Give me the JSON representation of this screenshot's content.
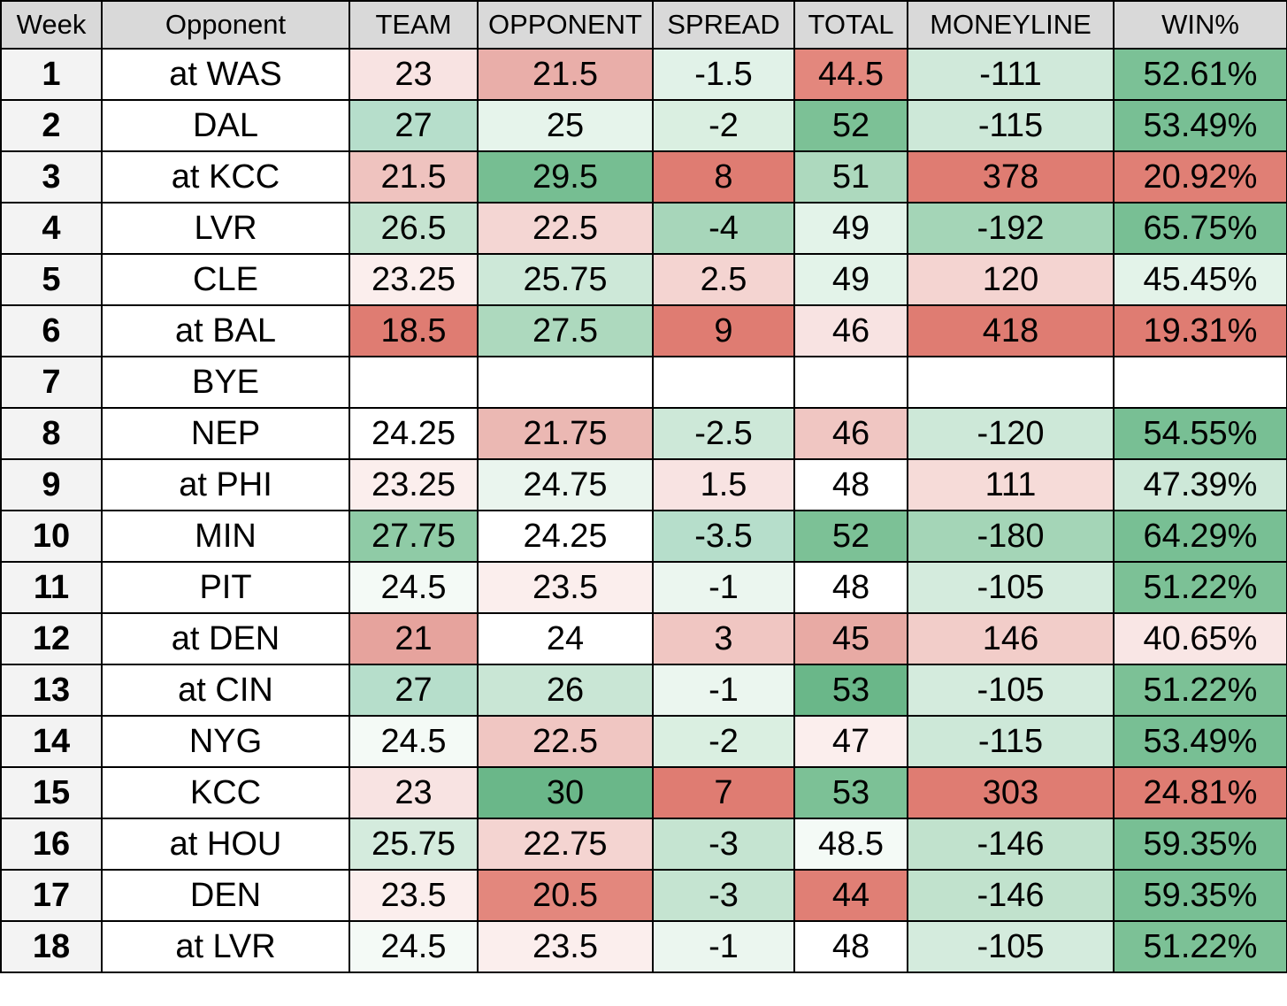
{
  "headers": [
    "Week",
    "Opponent",
    "TEAM",
    "OPPONENT",
    "SPREAD",
    "TOTAL",
    "MONEYLINE",
    "WIN%"
  ],
  "rows": [
    {
      "week": "1",
      "opp": "at WAS",
      "cells": [
        {
          "v": "23",
          "c": "#f8e3e2"
        },
        {
          "v": "21.5",
          "c": "#e9aea9"
        },
        {
          "v": "-1.5",
          "c": "#e1f2e8"
        },
        {
          "v": "44.5",
          "c": "#e3877d"
        },
        {
          "v": "-111",
          "c": "#d0e9da"
        },
        {
          "v": "52.61%",
          "c": "#7bc196"
        }
      ]
    },
    {
      "week": "2",
      "opp": "DAL",
      "cells": [
        {
          "v": "27",
          "c": "#b6decb"
        },
        {
          "v": "25",
          "c": "#e6f4eb"
        },
        {
          "v": "-2",
          "c": "#daefe1"
        },
        {
          "v": "52",
          "c": "#7cc196"
        },
        {
          "v": "-115",
          "c": "#cde8d8"
        },
        {
          "v": "53.49%",
          "c": "#78bf94"
        }
      ]
    },
    {
      "week": "3",
      "opp": "at KCC",
      "cells": [
        {
          "v": "21.5",
          "c": "#efc3bf"
        },
        {
          "v": "29.5",
          "c": "#76be92"
        },
        {
          "v": "8",
          "c": "#df7c72"
        },
        {
          "v": "51",
          "c": "#add9be"
        },
        {
          "v": "378",
          "c": "#df7c72"
        },
        {
          "v": "20.92%",
          "c": "#e07f75"
        }
      ]
    },
    {
      "week": "4",
      "opp": "LVR",
      "cells": [
        {
          "v": "26.5",
          "c": "#c5e4d1"
        },
        {
          "v": "22.5",
          "c": "#f4d6d3"
        },
        {
          "v": "-4",
          "c": "#a7d6ba"
        },
        {
          "v": "49",
          "c": "#e3f3e9"
        },
        {
          "v": "-192",
          "c": "#a4d5b7"
        },
        {
          "v": "65.75%",
          "c": "#78bf94"
        }
      ]
    },
    {
      "week": "5",
      "opp": "CLE",
      "cells": [
        {
          "v": "23.25",
          "c": "#fbeeed"
        },
        {
          "v": "25.75",
          "c": "#cde8d8"
        },
        {
          "v": "2.5",
          "c": "#f4d4d1"
        },
        {
          "v": "49",
          "c": "#e3f3e9"
        },
        {
          "v": "120",
          "c": "#f4d4d1"
        },
        {
          "v": "45.45%",
          "c": "#e3f3e9"
        }
      ]
    },
    {
      "week": "6",
      "opp": "at BAL",
      "cells": [
        {
          "v": "18.5",
          "c": "#df7c72"
        },
        {
          "v": "27.5",
          "c": "#add9be"
        },
        {
          "v": "9",
          "c": "#df7c72"
        },
        {
          "v": "46",
          "c": "#f8e3e2"
        },
        {
          "v": "418",
          "c": "#df7c72"
        },
        {
          "v": "19.31%",
          "c": "#df7c72"
        }
      ]
    },
    {
      "week": "7",
      "opp": "BYE",
      "cells": [
        {
          "v": "",
          "c": "#ffffff"
        },
        {
          "v": "",
          "c": "#ffffff"
        },
        {
          "v": "",
          "c": "#ffffff"
        },
        {
          "v": "",
          "c": "#ffffff"
        },
        {
          "v": "",
          "c": "#ffffff"
        },
        {
          "v": "",
          "c": "#ffffff"
        }
      ]
    },
    {
      "week": "8",
      "opp": "NEP",
      "cells": [
        {
          "v": "24.25",
          "c": "#ffffff"
        },
        {
          "v": "21.75",
          "c": "#ebb8b3"
        },
        {
          "v": "-2.5",
          "c": "#cde8d8"
        },
        {
          "v": "46",
          "c": "#f0c6c2"
        },
        {
          "v": "-120",
          "c": "#cde8d8"
        },
        {
          "v": "54.55%",
          "c": "#78bf94"
        }
      ]
    },
    {
      "week": "9",
      "opp": "at PHI",
      "cells": [
        {
          "v": "23.25",
          "c": "#fbeeed"
        },
        {
          "v": "24.75",
          "c": "#eaf5ee"
        },
        {
          "v": "1.5",
          "c": "#f8e3e2"
        },
        {
          "v": "48",
          "c": "#ffffff"
        },
        {
          "v": "111",
          "c": "#f6dbd8"
        },
        {
          "v": "47.39%",
          "c": "#cde8d8"
        }
      ]
    },
    {
      "week": "10",
      "opp": "MIN",
      "cells": [
        {
          "v": "27.75",
          "c": "#8fcba6"
        },
        {
          "v": "24.25",
          "c": "#ffffff"
        },
        {
          "v": "-3.5",
          "c": "#b6decb"
        },
        {
          "v": "52",
          "c": "#7cc196"
        },
        {
          "v": "-180",
          "c": "#a4d5b7"
        },
        {
          "v": "64.29%",
          "c": "#78bf94"
        }
      ]
    },
    {
      "week": "11",
      "opp": "PIT",
      "cells": [
        {
          "v": "24.5",
          "c": "#f4faf6"
        },
        {
          "v": "23.5",
          "c": "#fbeeed"
        },
        {
          "v": "-1",
          "c": "#ebf6ef"
        },
        {
          "v": "48",
          "c": "#ffffff"
        },
        {
          "v": "-105",
          "c": "#d4ebdd"
        },
        {
          "v": "51.22%",
          "c": "#7cc196"
        }
      ]
    },
    {
      "week": "12",
      "opp": "at DEN",
      "cells": [
        {
          "v": "21",
          "c": "#e6a39d"
        },
        {
          "v": "24",
          "c": "#ffffff"
        },
        {
          "v": "3",
          "c": "#f0c6c2"
        },
        {
          "v": "45",
          "c": "#e8aaa4"
        },
        {
          "v": "146",
          "c": "#f2cdc9"
        },
        {
          "v": "40.65%",
          "c": "#f9e6e5"
        }
      ]
    },
    {
      "week": "13",
      "opp": "at CIN",
      "cells": [
        {
          "v": "27",
          "c": "#b6decb"
        },
        {
          "v": "26",
          "c": "#c9e6d5"
        },
        {
          "v": "-1",
          "c": "#ebf6ef"
        },
        {
          "v": "53",
          "c": "#6ab789"
        },
        {
          "v": "-105",
          "c": "#d4ebdd"
        },
        {
          "v": "51.22%",
          "c": "#7cc196"
        }
      ]
    },
    {
      "week": "14",
      "opp": "NYG",
      "cells": [
        {
          "v": "24.5",
          "c": "#f4faf6"
        },
        {
          "v": "22.5",
          "c": "#f0c6c2"
        },
        {
          "v": "-2",
          "c": "#daefe1"
        },
        {
          "v": "47",
          "c": "#fbeeed"
        },
        {
          "v": "-115",
          "c": "#cde8d8"
        },
        {
          "v": "53.49%",
          "c": "#78bf94"
        }
      ]
    },
    {
      "week": "15",
      "opp": "KCC",
      "cells": [
        {
          "v": "23",
          "c": "#f8e3e2"
        },
        {
          "v": "30",
          "c": "#6ab789"
        },
        {
          "v": "7",
          "c": "#df7c72"
        },
        {
          "v": "53",
          "c": "#7cc196"
        },
        {
          "v": "303",
          "c": "#df7c72"
        },
        {
          "v": "24.81%",
          "c": "#df7c72"
        }
      ]
    },
    {
      "week": "16",
      "opp": "at HOU",
      "cells": [
        {
          "v": "25.75",
          "c": "#d4ebdd"
        },
        {
          "v": "22.75",
          "c": "#f4d4d1"
        },
        {
          "v": "-3",
          "c": "#c5e4d1"
        },
        {
          "v": "48.5",
          "c": "#f4faf6"
        },
        {
          "v": "-146",
          "c": "#c1e2cd"
        },
        {
          "v": "59.35%",
          "c": "#78bf94"
        }
      ]
    },
    {
      "week": "17",
      "opp": "DEN",
      "cells": [
        {
          "v": "23.5",
          "c": "#fbeeed"
        },
        {
          "v": "20.5",
          "c": "#e3877d"
        },
        {
          "v": "-3",
          "c": "#c5e4d1"
        },
        {
          "v": "44",
          "c": "#e07f75"
        },
        {
          "v": "-146",
          "c": "#c1e2cd"
        },
        {
          "v": "59.35%",
          "c": "#78bf94"
        }
      ]
    },
    {
      "week": "18",
      "opp": "at LVR",
      "cells": [
        {
          "v": "24.5",
          "c": "#f4faf6"
        },
        {
          "v": "23.5",
          "c": "#fbeeed"
        },
        {
          "v": "-1",
          "c": "#ebf6ef"
        },
        {
          "v": "48",
          "c": "#ffffff"
        },
        {
          "v": "-105",
          "c": "#d4ebdd"
        },
        {
          "v": "51.22%",
          "c": "#7cc196"
        }
      ]
    }
  ]
}
